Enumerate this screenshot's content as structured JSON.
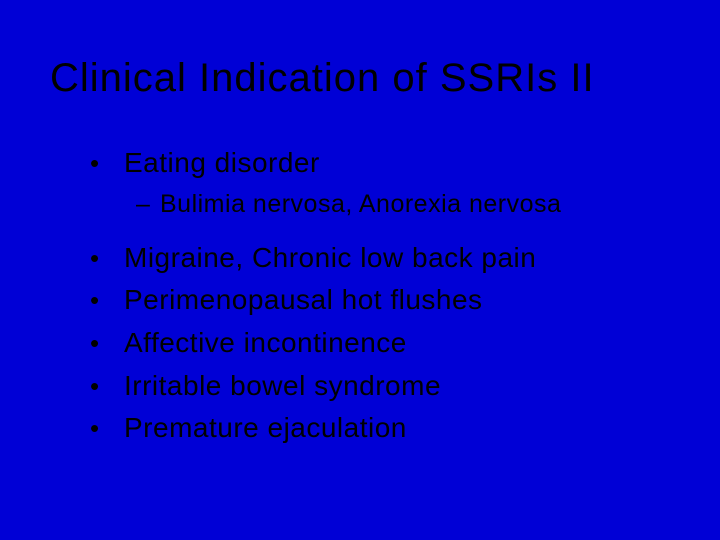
{
  "background_color": "#0000d6",
  "text_color": "#000000",
  "title": "Clinical Indication of SSRIs II",
  "title_fontsize": 40,
  "body_fontsize": 28,
  "sub_fontsize": 25,
  "bullets": [
    {
      "text": "Eating disorder",
      "sub": [
        "Bulimia nervosa, Anorexia nervosa"
      ]
    },
    {
      "text": "Migraine, Chronic low back pain"
    },
    {
      "text": "Perimenopausal hot flushes"
    },
    {
      "text": "Affective incontinence"
    },
    {
      "text": "Irritable bowel syndrome"
    },
    {
      "text": "Premature ejaculation"
    }
  ]
}
